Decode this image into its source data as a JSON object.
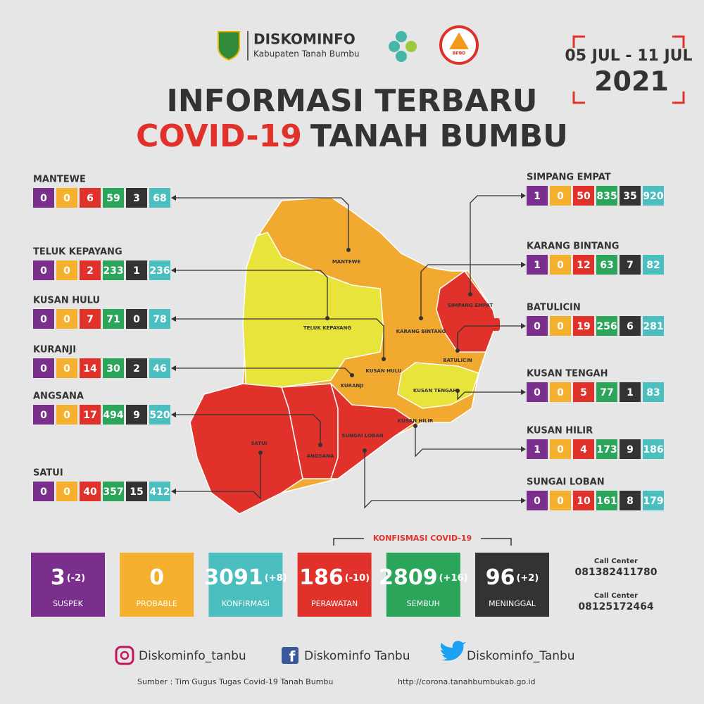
{
  "header": {
    "org": "DISKOMINFO",
    "org_sub": "Kabupaten Tanah Bumbu",
    "bpbd": "BPBD",
    "date_range": "05 JUL - 11 JUL",
    "year": "2021"
  },
  "title": {
    "line1": "INFORMASI TERBARU",
    "line2_highlight": "COVID-19",
    "line2_rest": "TANAH BUMBU"
  },
  "districts": [
    {
      "name": "MANTEWE",
      "values": [
        0,
        0,
        6,
        59,
        3,
        68
      ]
    },
    {
      "name": "TELUK KEPAYANG",
      "values": [
        0,
        0,
        2,
        233,
        1,
        236
      ]
    },
    {
      "name": "KUSAN HULU",
      "values": [
        0,
        0,
        7,
        71,
        0,
        78
      ]
    },
    {
      "name": "KURANJI",
      "values": [
        0,
        0,
        14,
        30,
        2,
        46
      ]
    },
    {
      "name": "ANGSANA",
      "values": [
        0,
        0,
        17,
        494,
        9,
        520
      ]
    },
    {
      "name": "SATUI",
      "values": [
        0,
        0,
        40,
        357,
        15,
        412
      ]
    },
    {
      "name": "SIMPANG EMPAT",
      "values": [
        1,
        0,
        50,
        835,
        35,
        920
      ]
    },
    {
      "name": "KARANG BINTANG",
      "values": [
        1,
        0,
        12,
        63,
        7,
        82
      ]
    },
    {
      "name": "BATULICIN",
      "values": [
        0,
        0,
        19,
        256,
        6,
        281
      ]
    },
    {
      "name": "KUSAN TENGAH",
      "values": [
        0,
        0,
        5,
        77,
        1,
        83
      ]
    },
    {
      "name": "KUSAN HILIR",
      "values": [
        1,
        0,
        4,
        173,
        9,
        186
      ]
    },
    {
      "name": "SUNGAI LOBAN",
      "values": [
        0,
        0,
        10,
        161,
        8,
        179
      ]
    }
  ],
  "summary": {
    "confirmation_heading": "KONFISMASI COVID-19",
    "items": [
      {
        "value": 3,
        "change": "(-2)",
        "label": "SUSPEK"
      },
      {
        "value": 0,
        "label": "PROBABLE"
      },
      {
        "value": 3091,
        "change": "(+8)",
        "label": "KONFIRMASI"
      },
      {
        "value": 186,
        "change": "(-10)",
        "label": "PERAWATAN"
      },
      {
        "value": 2809,
        "change": "(+16)",
        "label": "SEMBUH"
      },
      {
        "value": 96,
        "change": "(+2)",
        "label": "MENINGGAL"
      }
    ]
  },
  "call_center": [
    {
      "label": "Call Center",
      "number": "081382411780"
    },
    {
      "label": "Call Center",
      "number": "08125172464"
    }
  ],
  "social": {
    "instagram": "Diskominfo_tanbu",
    "facebook": "Diskominfo Tanbu",
    "twitter": "Diskominfo_Tanbu"
  },
  "footer": {
    "source": "Sumber : Tim Gugus Tugas Covid-19 Tanah Bumbu",
    "url": "http://corona.tanahbumbukab.go.id"
  }
}
